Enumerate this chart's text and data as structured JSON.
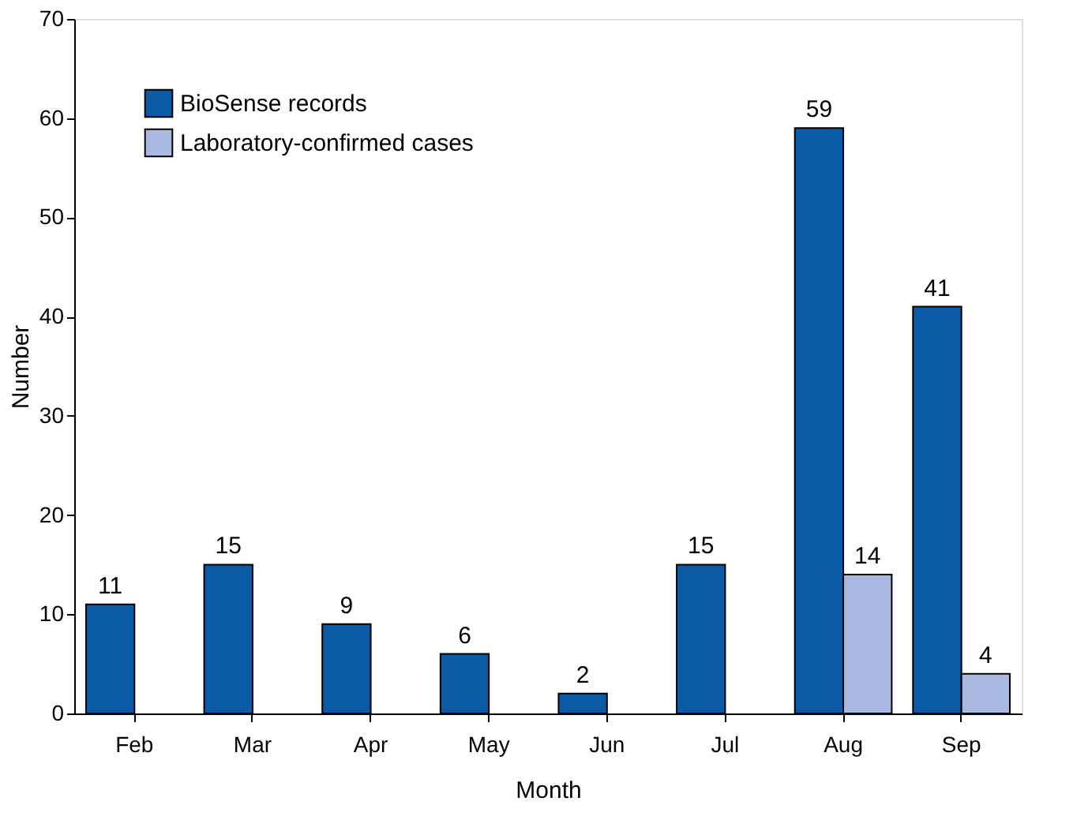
{
  "chart_data": {
    "type": "bar",
    "xlabel": "Month",
    "ylabel": "Number",
    "categories": [
      "Feb",
      "Mar",
      "Apr",
      "May",
      "Jun",
      "Jul",
      "Aug",
      "Sep"
    ],
    "series": [
      {
        "name": "BioSense records",
        "color": "#0b5aa6",
        "values": [
          11,
          15,
          9,
          6,
          2,
          15,
          59,
          41
        ]
      },
      {
        "name": "Laboratory-confirmed cases",
        "color": "#aab9e0",
        "values": [
          null,
          null,
          null,
          null,
          null,
          null,
          14,
          4
        ]
      }
    ],
    "ylim": [
      0,
      70
    ],
    "yticks": [
      0,
      10,
      20,
      30,
      40,
      50,
      60,
      70
    ],
    "grid": false,
    "legend": "top left",
    "data_labels": true
  }
}
